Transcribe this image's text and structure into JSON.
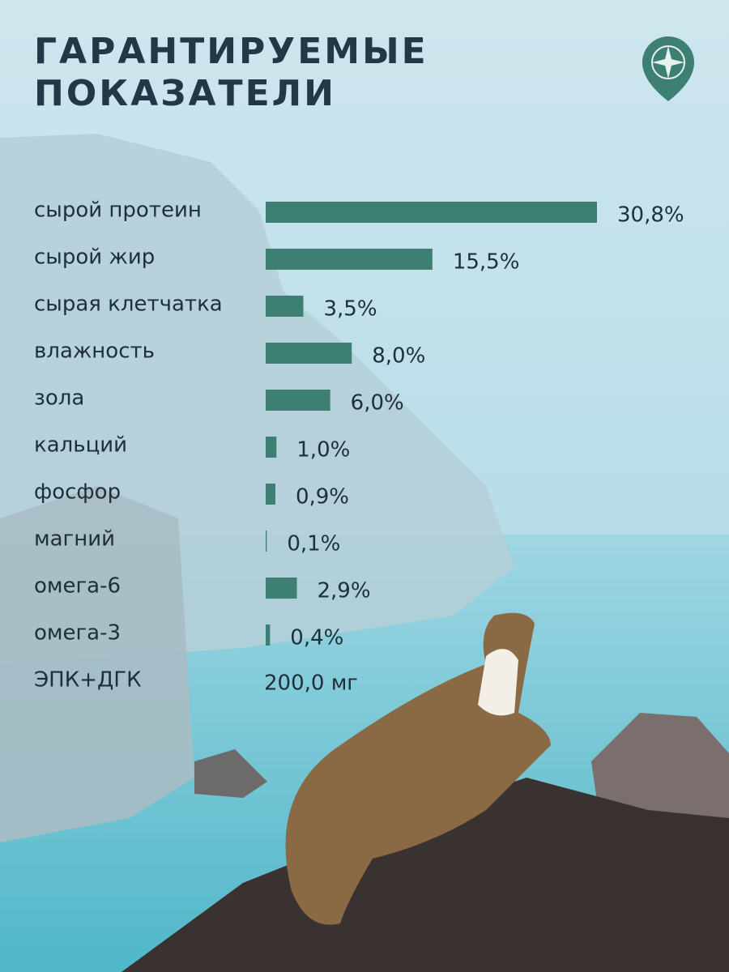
{
  "chart_data": {
    "type": "hbar",
    "title": [
      "ГАРАНТИРУЕМЫЕ",
      "ПОКАЗАТЕЛИ"
    ],
    "categories": [
      "сырой протеин",
      "сырой жир",
      "сырая клетчатка",
      "влажность",
      "зола",
      "кальций",
      "фосфор",
      "магний",
      "омега-6",
      "омега-3"
    ],
    "values": [
      30.8,
      15.5,
      3.5,
      8.0,
      6.0,
      1.0,
      0.9,
      0.1,
      2.9,
      0.4
    ],
    "value_labels": [
      "30,8%",
      "15,5%",
      "3,5%",
      "8,0%",
      "6,0%",
      "1,0%",
      "0,9%",
      "0,1%",
      "2,9%",
      "0,4%"
    ],
    "color": "#3e7f73",
    "xlim": [
      0,
      30.8
    ],
    "extra": {
      "label": "ЭПК+ДГК",
      "value_label": "200,0 мг"
    }
  }
}
